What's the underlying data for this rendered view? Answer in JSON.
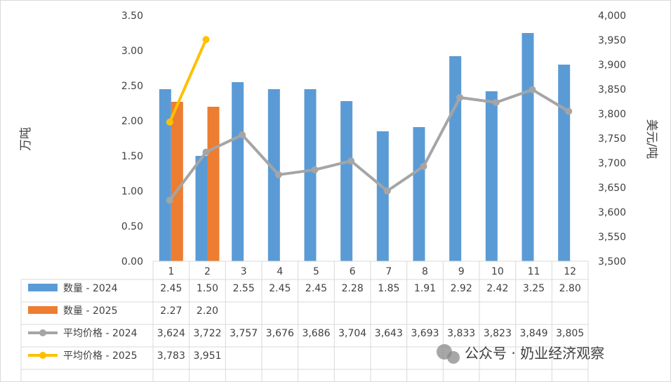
{
  "chart_data": {
    "type": "bar",
    "categories": [
      "1",
      "2",
      "3",
      "4",
      "5",
      "6",
      "7",
      "8",
      "9",
      "10",
      "11",
      "12"
    ],
    "ylabel_left": "万吨",
    "ylabel_right": "美元/吨",
    "ylim_left": [
      0,
      3.5
    ],
    "ylim_right": [
      3500,
      4000
    ],
    "y_ticks_left": [
      "0.00",
      "0.50",
      "1.00",
      "1.50",
      "2.00",
      "2.50",
      "3.00",
      "3.50"
    ],
    "y_ticks_right": [
      "3,500",
      "3,550",
      "3,600",
      "3,650",
      "3,700",
      "3,750",
      "3,800",
      "3,850",
      "3,900",
      "3,950",
      "4,000"
    ],
    "grid": false,
    "legend_placement": "data-table",
    "series": [
      {
        "name": "数量 - 2024",
        "type": "bar",
        "axis": "left",
        "color": "#5B9BD5",
        "values": [
          2.45,
          1.5,
          2.55,
          2.45,
          2.45,
          2.28,
          1.85,
          1.91,
          2.92,
          2.42,
          3.25,
          2.8
        ],
        "labels": [
          "2.45",
          "1.50",
          "2.55",
          "2.45",
          "2.45",
          "2.28",
          "1.85",
          "1.91",
          "2.92",
          "2.42",
          "3.25",
          "2.80"
        ]
      },
      {
        "name": "数量 - 2025",
        "type": "bar",
        "axis": "left",
        "color": "#ED7D31",
        "values": [
          2.27,
          2.2,
          null,
          null,
          null,
          null,
          null,
          null,
          null,
          null,
          null,
          null
        ],
        "labels": [
          "2.27",
          "2.20",
          "",
          "",
          "",
          "",
          "",
          "",
          "",
          "",
          "",
          ""
        ]
      },
      {
        "name": "平均价格 - 2024",
        "type": "line",
        "axis": "right",
        "color": "#A5A5A5",
        "values": [
          3624,
          3722,
          3757,
          3676,
          3686,
          3704,
          3643,
          3693,
          3833,
          3823,
          3849,
          3805
        ],
        "labels": [
          "3,624",
          "3,722",
          "3,757",
          "3,676",
          "3,686",
          "3,704",
          "3,643",
          "3,693",
          "3,833",
          "3,823",
          "3,849",
          "3,805"
        ]
      },
      {
        "name": "平均价格 - 2025",
        "type": "line",
        "axis": "right",
        "color": "#FFC000",
        "values": [
          3783,
          3951,
          null,
          null,
          null,
          null,
          null,
          null,
          null,
          null,
          null,
          null
        ],
        "labels": [
          "3,783",
          "3,951",
          "",
          "",
          "",
          "",
          "",
          "",
          "",
          "",
          "",
          ""
        ]
      }
    ]
  },
  "watermark": {
    "text": "公众号 · 奶业经济观察",
    "icon": "wechat-icon"
  }
}
